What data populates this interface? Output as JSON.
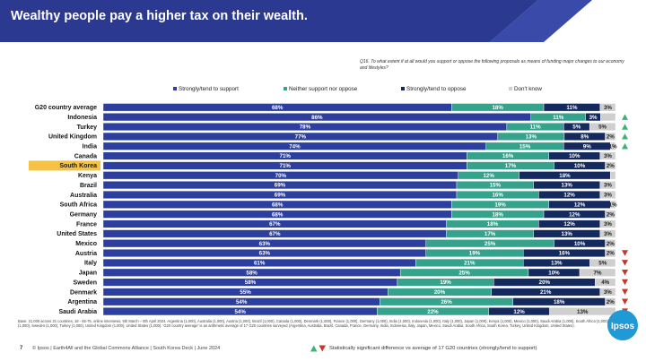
{
  "title": "Wealthy people pay a higher tax on their wealth.",
  "question": "Q16. To what extent if at all would you support or oppose the following proposals as means of funding major changes to our economy and lifestyles?",
  "colors": {
    "support": "#2d3f9e",
    "neither": "#35a38c",
    "oppose": "#142a5e",
    "dont_know": "#cfcfcf",
    "highlight": "#f5c242",
    "up": "#3cb371",
    "down": "#c0392b",
    "header": "#2b3990",
    "header_accent": "#3a4aa8"
  },
  "chart_data": {
    "type": "bar",
    "orientation": "horizontal",
    "stacked": true,
    "x_range": [
      0,
      100
    ],
    "highlight_category": "South Korea",
    "legend": [
      "Strongly/tend to support",
      "Neither support nor oppose",
      "Strongly/tend to oppose",
      "Don't know"
    ],
    "categories": [
      "G20 country average",
      "Indonesia",
      "Turkey",
      "United Kingdom",
      "India",
      "Canada",
      "South Korea",
      "Kenya",
      "Brazil",
      "Australia",
      "South Africa",
      "Germany",
      "France",
      "United States",
      "Mexico",
      "Austria",
      "Italy",
      "Japan",
      "Sweden",
      "Denmark",
      "Argentina",
      "Saudi Arabia"
    ],
    "series": [
      {
        "name": "Strongly/tend to support",
        "values": [
          68,
          86,
          78,
          77,
          74,
          71,
          71,
          70,
          69,
          69,
          68,
          68,
          67,
          67,
          63,
          63,
          61,
          58,
          58,
          55,
          54,
          54
        ]
      },
      {
        "name": "Neither support nor oppose",
        "values": [
          18,
          11,
          11,
          13,
          15,
          16,
          17,
          12,
          15,
          16,
          19,
          18,
          18,
          17,
          25,
          19,
          21,
          25,
          19,
          20,
          26,
          22
        ]
      },
      {
        "name": "Strongly/tend to oppose",
        "values": [
          11,
          3,
          5,
          8,
          9,
          10,
          10,
          18,
          13,
          12,
          12,
          12,
          12,
          13,
          10,
          16,
          13,
          10,
          20,
          21,
          18,
          12
        ]
      },
      {
        "name": "Don't know",
        "values": [
          3,
          3,
          5,
          2,
          1,
          3,
          2,
          1,
          3,
          3,
          1,
          2,
          3,
          3,
          2,
          2,
          5,
          7,
          4,
          3,
          2,
          13
        ]
      }
    ],
    "labels": [
      [
        "68%",
        "18%",
        "11%",
        "3%"
      ],
      [
        "86%",
        "11%",
        "3%",
        ""
      ],
      [
        "78%",
        "11%",
        "5%",
        "5%"
      ],
      [
        "77%",
        "13%",
        "8%",
        "2%"
      ],
      [
        "74%",
        "15%",
        "9%",
        "1%"
      ],
      [
        "71%",
        "16%",
        "10%",
        "3%"
      ],
      [
        "71%",
        "17%",
        "10%",
        "2%"
      ],
      [
        "70%",
        "12%",
        "18%",
        ""
      ],
      [
        "69%",
        "15%",
        "13%",
        "3%"
      ],
      [
        "69%",
        "16%",
        "12%",
        "3%"
      ],
      [
        "68%",
        "19%",
        "12%",
        "1%"
      ],
      [
        "68%",
        "18%",
        "12%",
        "2%"
      ],
      [
        "67%",
        "18%",
        "12%",
        "3%"
      ],
      [
        "67%",
        "17%",
        "13%",
        "3%"
      ],
      [
        "63%",
        "25%",
        "10%",
        "2%"
      ],
      [
        "63%",
        "19%",
        "16%",
        "2%"
      ],
      [
        "61%",
        "21%",
        "13%",
        "5%"
      ],
      [
        "58%",
        "25%",
        "10%",
        "7%"
      ],
      [
        "58%",
        "19%",
        "20%",
        "4%"
      ],
      [
        "55%",
        "20%",
        "21%",
        "3%"
      ],
      [
        "54%",
        "26%",
        "18%",
        "2%"
      ],
      [
        "54%",
        "22%",
        "12%",
        "13%"
      ]
    ],
    "significance": [
      "",
      "up",
      "up",
      "up",
      "up",
      "",
      "",
      "",
      "",
      "",
      "",
      "",
      "",
      "",
      "",
      "down",
      "down",
      "down",
      "down",
      "down",
      "down",
      "down"
    ]
  },
  "base_note": "Base: 21,000 across 21 countries, 18 - 65-75, online interviews, 5th March – 8th April 2024. Argentina (1,000), Australia (1,000), Austria (1,000), Brazil (1,000), Canada (1,000), Denmark (1,000), France (1,000), Germany (1,000), India (1,000), Indonesia (1,000), Italy (1,000), Japan (1,000), Kenya (1,000), Mexico (1,000), Saudi Arabia (1,000), South Africa (1,000), South Korea (1,000), Sweden (1,000), Turkey (1,000), United Kingdom (1,000), United States (1,000). 'G20 country average' is an arithmetic average of 17 G20 countries surveyed (Argentina, Australia, Brazil, Canada, France, Germany, India, Indonesia, Italy, Japan, Mexico, Saudi Arabia, South Africa, South Korea, Turkey, United Kingdom, United States).",
  "footer": {
    "page_number": "7",
    "copyright": "© Ipsos | Earth4All and the Global Commons Alliance | South Korea Deck | June 2024",
    "significance_note": "Statistically significant difference vs average of 17 G20 countries  (strongly/tend to support)",
    "logo_text": "Ipsos"
  }
}
